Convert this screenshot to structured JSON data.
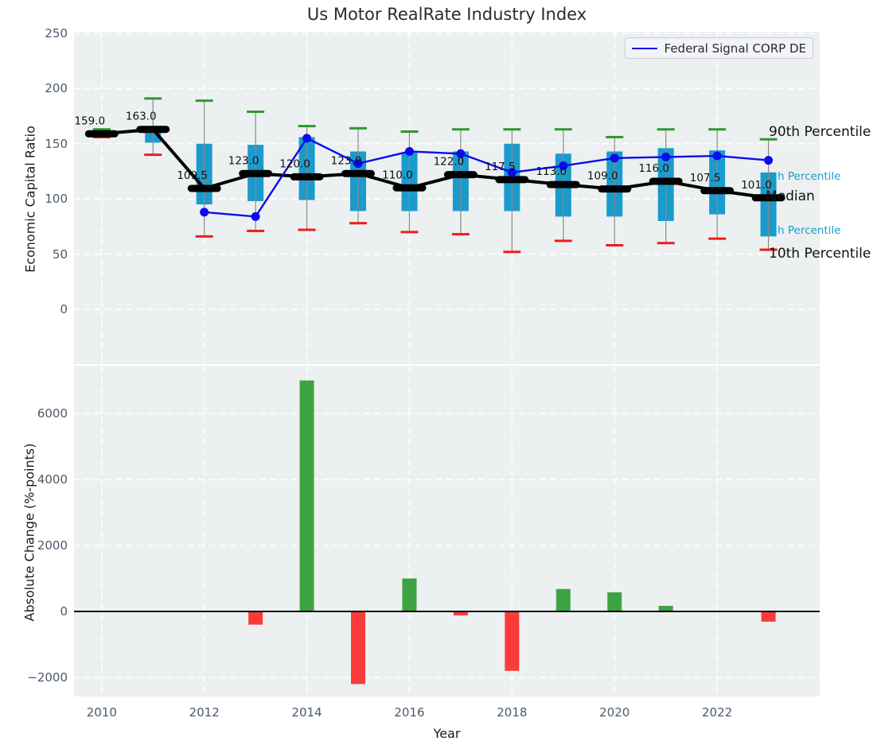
{
  "title": "Us Motor RealRate Industry Index",
  "legend": {
    "label": "Federal Signal CORP DE",
    "line_color": "#0b0bee"
  },
  "colors": {
    "box": "#1a9bcc",
    "cap_high": "#2e9932",
    "cap_low": "#ee1c1c",
    "whisker": "#8a8a8a",
    "median_line": "#000000",
    "company_line": "#0b0bee",
    "bar_positive": "#3da342",
    "bar_negative": "#fb3b3b",
    "plot_bg": "#ecf0f1",
    "grid": "#ffffff",
    "tick_text": "#4b5a6a",
    "percentile_text_cyan": "#1a9bcc",
    "annotation_text_black": "#111111"
  },
  "chart_data": [
    {
      "type": "box-whisker-with-line",
      "title": "Us Motor RealRate Industry Index",
      "ylabel": "Economic Capital Ratio",
      "xlim": [
        2009.46,
        2024.0
      ],
      "ylim": [
        -49.7,
        251.4
      ],
      "yticks": [
        0,
        50,
        100,
        150,
        200,
        250
      ],
      "ytick_labels": [
        "0",
        "50",
        "100",
        "150",
        "200",
        "250"
      ],
      "xgrid_years": [
        2010,
        2012,
        2014,
        2016,
        2018,
        2020,
        2022
      ],
      "grid": "on",
      "legend_position": "upper right",
      "years": [
        2010,
        2011,
        2012,
        2013,
        2014,
        2015,
        2016,
        2017,
        2018,
        2019,
        2020,
        2021,
        2022,
        2023
      ],
      "p90": [
        163,
        191,
        189,
        179,
        166,
        164,
        161,
        163,
        163,
        163,
        156,
        163,
        163,
        154
      ],
      "p75": [
        161,
        163,
        150,
        149,
        156,
        143,
        142,
        143,
        150,
        141,
        143,
        146,
        144,
        124
      ],
      "median": [
        159,
        163,
        109.5,
        123,
        120,
        123,
        110,
        122,
        117.5,
        113,
        109,
        116,
        107.5,
        101
      ],
      "p25": [
        157,
        151,
        95,
        98,
        99,
        89,
        89,
        89,
        89,
        84,
        84,
        80,
        86,
        66
      ],
      "p10": [
        156,
        140,
        66,
        71,
        72,
        78,
        70,
        68,
        52,
        62,
        58,
        60,
        64,
        54
      ],
      "median_labels": [
        "159.0",
        "163.0",
        "109.5",
        "123.0",
        "120.0",
        "123.0",
        "110.0",
        "122.0",
        "117.5",
        "113.0",
        "109.0",
        "116.0",
        "107.5",
        "101.0"
      ],
      "series": [
        {
          "name": "Federal Signal CORP DE",
          "x": [
            2012,
            2013,
            2014,
            2015,
            2016,
            2017,
            2018,
            2019,
            2020,
            2021,
            2022,
            2023
          ],
          "values": [
            88,
            84,
            155,
            132,
            143,
            141,
            124,
            130,
            137,
            138,
            139,
            135
          ]
        }
      ],
      "annotations": [
        {
          "text": "90th Percentile",
          "y_value": 160,
          "x": 966,
          "color": "#111111",
          "size": 17
        },
        {
          "text": "h Percentile",
          "y_value": 120,
          "x": 977,
          "color": "#1a9bcc",
          "size": 13.5
        },
        {
          "text": "Median",
          "y_value": 102,
          "x": 962,
          "color": "#111111",
          "size": 17
        },
        {
          "text": "h Percentile",
          "y_value": 71,
          "x": 977,
          "color": "#1a9bcc",
          "size": 13.5
        },
        {
          "text": "10th Percentile",
          "y_value": 50,
          "x": 966,
          "color": "#111111",
          "size": 17
        }
      ]
    },
    {
      "type": "bar",
      "ylabel": "Absolute Change (%-points)",
      "xlabel": "Year",
      "xlim": [
        2009.46,
        2024.0
      ],
      "ylim": [
        -2578,
        7446
      ],
      "yticks": [
        -2000,
        0,
        2000,
        4000,
        6000
      ],
      "ytick_labels": [
        "−2000",
        "0",
        "2000",
        "4000",
        "6000"
      ],
      "xticks": [
        2010,
        2012,
        2014,
        2016,
        2018,
        2020,
        2022
      ],
      "xtick_labels": [
        "2010",
        "2012",
        "2014",
        "2016",
        "2018",
        "2020",
        "2022"
      ],
      "grid": "on",
      "years": [
        2010,
        2011,
        2012,
        2013,
        2014,
        2015,
        2016,
        2017,
        2018,
        2019,
        2020,
        2021,
        2022,
        2023
      ],
      "values": [
        null,
        null,
        null,
        -400,
        7000,
        -2200,
        1000,
        -120,
        -1800,
        680,
        580,
        170,
        null,
        -310
      ]
    }
  ]
}
